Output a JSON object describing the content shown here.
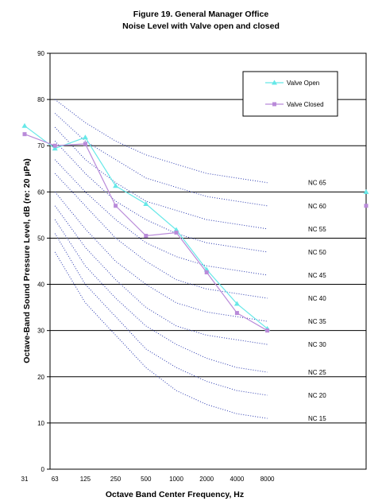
{
  "chart_data": {
    "type": "line",
    "title": "Figure 19. General Manager Office",
    "subtitle": "Noise Level with Valve open and closed",
    "xlabel": "Octave Band Center Frequency, Hz",
    "ylabel": "Octave-Band Sound Pressure Level, dB (re: 20 µPa)",
    "categories": [
      "31",
      "63",
      "125",
      "250",
      "500",
      "1000",
      "2000",
      "4000",
      "8000"
    ],
    "ylim": [
      0,
      90
    ],
    "yticks": [
      0,
      10,
      20,
      30,
      40,
      50,
      60,
      70,
      80,
      90
    ],
    "grid": "horizontal",
    "legend_position": "top-right",
    "series": [
      {
        "name": "Valve Open",
        "color": "#66e8e8",
        "marker": "triangle",
        "values": [
          74.3,
          69.4,
          71.8,
          61.3,
          57.4,
          51.8,
          43.2,
          35.8,
          30.4
        ],
        "outlier": 60.0
      },
      {
        "name": "Valve Closed",
        "color": "#b98ad9",
        "marker": "square",
        "values": [
          72.5,
          70.0,
          70.4,
          57.0,
          50.5,
          51.2,
          42.6,
          33.8,
          30.0
        ],
        "outlier": 57.0
      }
    ],
    "nc_curves": [
      {
        "name": "NC 65",
        "values": [
          null,
          80,
          75,
          71,
          68,
          66,
          64,
          63,
          62
        ]
      },
      {
        "name": "NC 60",
        "values": [
          null,
          77,
          71,
          67,
          63,
          61,
          59,
          58,
          57
        ]
      },
      {
        "name": "NC 55",
        "values": [
          null,
          74,
          67,
          62,
          58,
          56,
          54,
          53,
          52
        ]
      },
      {
        "name": "NC 50",
        "values": [
          null,
          71,
          64,
          58,
          54,
          51,
          49,
          48,
          47
        ]
      },
      {
        "name": "NC 45",
        "values": [
          null,
          67,
          60,
          54,
          49,
          46,
          44,
          43,
          42
        ]
      },
      {
        "name": "NC 40",
        "values": [
          null,
          64,
          57,
          50,
          45,
          41,
          39,
          38,
          37
        ]
      },
      {
        "name": "NC 35",
        "values": [
          null,
          60,
          52,
          45,
          40,
          36,
          34,
          33,
          32
        ]
      },
      {
        "name": "NC 30",
        "values": [
          null,
          57,
          48,
          41,
          35,
          31,
          29,
          28,
          27
        ]
      },
      {
        "name": "NC 25",
        "values": [
          null,
          54,
          44,
          37,
          31,
          27,
          24,
          22,
          21
        ]
      },
      {
        "name": "NC 20",
        "values": [
          null,
          51,
          40,
          33,
          26,
          22,
          19,
          17,
          16
        ]
      },
      {
        "name": "NC 15",
        "values": [
          null,
          47,
          36,
          29,
          22,
          17,
          14,
          12,
          11
        ]
      }
    ]
  }
}
